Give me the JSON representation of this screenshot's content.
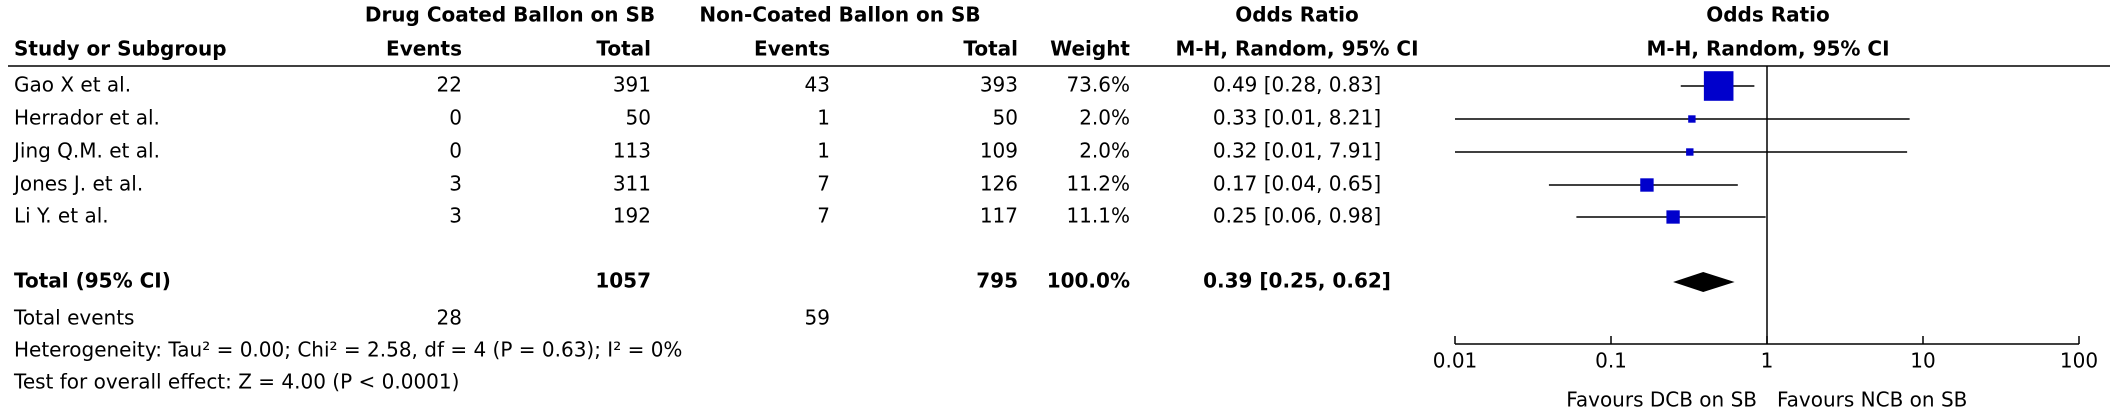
{
  "chart_data": {
    "type": "forest",
    "group_headers": [
      "Drug Coated Ballon on SB",
      "Non-Coated Ballon on SB",
      "Odds Ratio",
      "Odds Ratio"
    ],
    "columns": [
      "Study or Subgroup",
      "Events",
      "Total",
      "Events",
      "Total",
      "Weight",
      "M-H, Random, 95% CI",
      "M-H, Random, 95% CI"
    ],
    "studies": [
      {
        "name": "Gao X et al.",
        "e1": 22,
        "t1": 391,
        "e2": 43,
        "t2": 393,
        "weight": 73.6,
        "weight_label": "73.6%",
        "or": 0.49,
        "lo": 0.28,
        "hi": 0.83,
        "ci_label": "0.49 [0.28, 0.83]"
      },
      {
        "name": "Herrador et al.",
        "e1": 0,
        "t1": 50,
        "e2": 1,
        "t2": 50,
        "weight": 2.0,
        "weight_label": "2.0%",
        "or": 0.33,
        "lo": 0.01,
        "hi": 8.21,
        "ci_label": "0.33 [0.01, 8.21]"
      },
      {
        "name": "Jing Q.M. et al.",
        "e1": 0,
        "t1": 113,
        "e2": 1,
        "t2": 109,
        "weight": 2.0,
        "weight_label": "2.0%",
        "or": 0.32,
        "lo": 0.01,
        "hi": 7.91,
        "ci_label": "0.32 [0.01, 7.91]"
      },
      {
        "name": "Jones J. et al.",
        "e1": 3,
        "t1": 311,
        "e2": 7,
        "t2": 126,
        "weight": 11.2,
        "weight_label": "11.2%",
        "or": 0.17,
        "lo": 0.04,
        "hi": 0.65,
        "ci_label": "0.17 [0.04, 0.65]"
      },
      {
        "name": "Li Y. et al.",
        "e1": 3,
        "t1": 192,
        "e2": 7,
        "t2": 117,
        "weight": 11.1,
        "weight_label": "11.1%",
        "or": 0.25,
        "lo": 0.06,
        "hi": 0.98,
        "ci_label": "0.25 [0.06, 0.98]"
      }
    ],
    "total": {
      "name": "Total (95% CI)",
      "t1": 1057,
      "t2": 795,
      "weight_label": "100.0%",
      "or": 0.39,
      "lo": 0.25,
      "hi": 0.62,
      "ci_label": "0.39 [0.25, 0.62]"
    },
    "total_events": {
      "name": "Total events",
      "e1": 28,
      "e2": 59
    },
    "heterogeneity": "Heterogeneity: Tau² = 0.00; Chi² = 2.58, df = 4 (P = 0.63); I² = 0%",
    "overall_effect": "Test for overall effect: Z = 4.00 (P < 0.0001)",
    "log_x": true,
    "xlim": [
      0.01,
      100
    ],
    "xticks": [
      0.01,
      0.1,
      1,
      10,
      100
    ],
    "x_labels": [
      "Favours DCB on SB",
      "Favours NCB on SB"
    ],
    "color": "#0000cc"
  }
}
